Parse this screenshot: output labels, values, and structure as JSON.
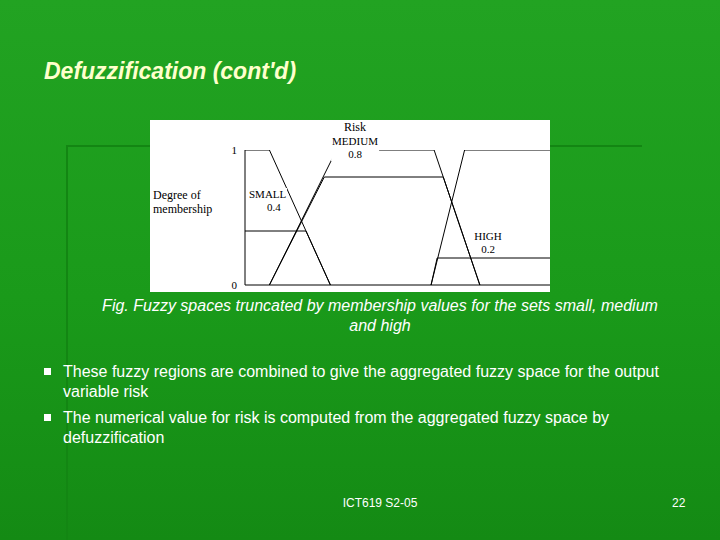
{
  "slide": {
    "title": "Defuzzification (cont'd)",
    "caption": "Fig. Fuzzy spaces truncated by membership values for the sets small, medium and high",
    "bullets": [
      "These fuzzy regions are combined to give the aggregated fuzzy space for the output variable risk",
      "The numerical value for risk is computed from the aggregated fuzzy space by defuzzification"
    ],
    "footer": "ICT619 S2-05",
    "page_number": 22
  },
  "chart_data": {
    "type": "line",
    "title": "Risk",
    "y_label": "Degree of membership",
    "xlim": [
      0,
      100
    ],
    "ylim": [
      0,
      1
    ],
    "yticks": [
      0,
      1
    ],
    "tick_labels": "y",
    "color": "#000000",
    "series": [
      {
        "name": "SMALL",
        "cut": 0.4,
        "x": [
          0,
          8,
          28
        ],
        "values": [
          1,
          1,
          0
        ],
        "truncated": {
          "x": [
            0,
            20,
            28
          ],
          "values": [
            0.4,
            0.4,
            0
          ]
        }
      },
      {
        "name": "MEDIUM",
        "cut": 0.8,
        "x": [
          8,
          30,
          62,
          77
        ],
        "values": [
          0,
          1,
          1,
          0
        ],
        "truncated": {
          "x": [
            8,
            26,
            65,
            77
          ],
          "values": [
            0,
            0.8,
            0.8,
            0
          ]
        }
      },
      {
        "name": "HIGH",
        "cut": 0.2,
        "x": [
          61,
          72,
          100
        ],
        "values": [
          0,
          1,
          1
        ],
        "truncated": {
          "x": [
            61,
            63,
            100
          ],
          "values": [
            0,
            0.2,
            0.2
          ]
        }
      }
    ]
  }
}
